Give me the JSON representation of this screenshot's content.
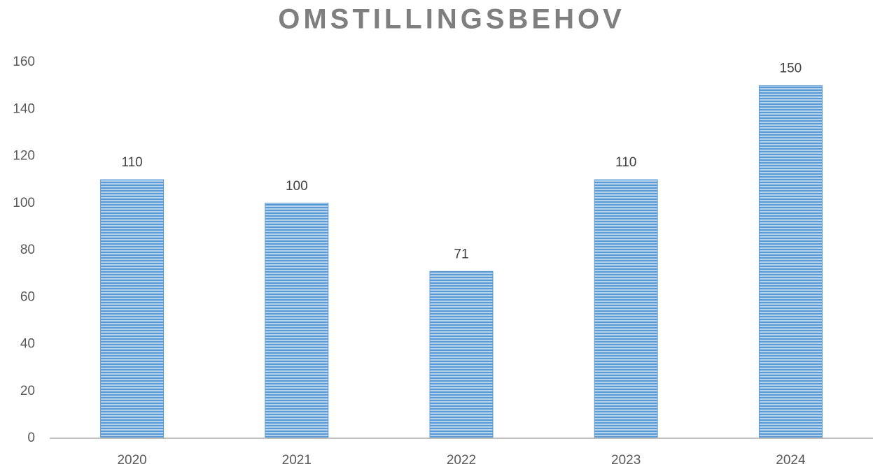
{
  "chart_data": {
    "type": "bar",
    "title": "OMSTILLINGSBEHOV",
    "categories": [
      "2020",
      "2021",
      "2022",
      "2023",
      "2024"
    ],
    "values": [
      110,
      100,
      71,
      110,
      150
    ],
    "color": "#5b9bd5",
    "ylim": [
      0,
      160
    ],
    "yticks": [
      0,
      20,
      40,
      60,
      80,
      100,
      120,
      140,
      160
    ],
    "grid": false
  }
}
